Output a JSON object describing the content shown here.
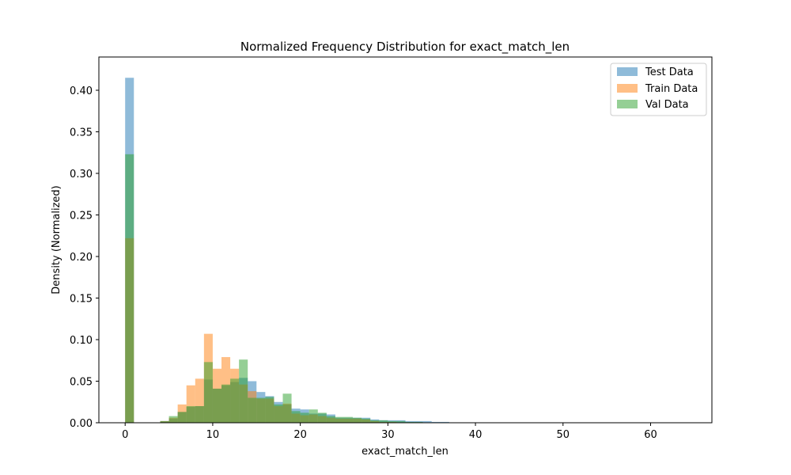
{
  "chart_data": {
    "type": "bar",
    "title": "Normalized Frequency Distribution for exact_match_len",
    "xlabel": "exact_match_len",
    "ylabel": "Density (Normalized)",
    "xlim": [
      -3,
      67
    ],
    "ylim": [
      0,
      0.44
    ],
    "x_ticks": [
      0,
      10,
      20,
      30,
      40,
      50,
      60
    ],
    "y_ticks": [
      0.0,
      0.05,
      0.1,
      0.15,
      0.2,
      0.25,
      0.3,
      0.35,
      0.4
    ],
    "x_tick_labels": [
      "0",
      "10",
      "20",
      "30",
      "40",
      "50",
      "60"
    ],
    "y_tick_labels": [
      "0.00",
      "0.05",
      "0.10",
      "0.15",
      "0.20",
      "0.25",
      "0.30",
      "0.35",
      "0.40"
    ],
    "legend_position": "top-right",
    "grid": false,
    "series": [
      {
        "name": "Test Data",
        "color": "#1f77b4",
        "bin_width": 1.0,
        "bin_starts": [
          0,
          4,
          5,
          6,
          7,
          8,
          9,
          10,
          11,
          12,
          13,
          14,
          15,
          16,
          17,
          18,
          19,
          20,
          21,
          22,
          23,
          24,
          25,
          26,
          27,
          28,
          29,
          30,
          31,
          32,
          33,
          34,
          35,
          36
        ],
        "values": [
          0.415,
          0.002,
          0.005,
          0.013,
          0.019,
          0.02,
          0.052,
          0.041,
          0.045,
          0.049,
          0.054,
          0.05,
          0.037,
          0.032,
          0.025,
          0.022,
          0.017,
          0.016,
          0.011,
          0.011,
          0.01,
          0.006,
          0.006,
          0.006,
          0.006,
          0.004,
          0.003,
          0.003,
          0.003,
          0.002,
          0.002,
          0.002,
          0.001,
          0.001
        ]
      },
      {
        "name": "Train Data",
        "color": "#ff7f0e",
        "bin_width": 1.0,
        "bin_starts": [
          0,
          4,
          5,
          6,
          7,
          8,
          9,
          10,
          11,
          12,
          13,
          14,
          15,
          16,
          17,
          18,
          19,
          20,
          21,
          22,
          23,
          24,
          25,
          26,
          27,
          28,
          29,
          30
        ],
        "values": [
          0.222,
          0.002,
          0.006,
          0.022,
          0.045,
          0.053,
          0.107,
          0.065,
          0.079,
          0.065,
          0.046,
          0.038,
          0.029,
          0.029,
          0.02,
          0.023,
          0.011,
          0.009,
          0.01,
          0.008,
          0.006,
          0.005,
          0.005,
          0.005,
          0.004,
          0.002,
          0.001,
          0.001
        ]
      },
      {
        "name": "Val Data",
        "color": "#2ca02c",
        "bin_width": 1.0,
        "bin_starts": [
          0,
          4,
          5,
          6,
          7,
          8,
          9,
          10,
          11,
          12,
          13,
          14,
          15,
          16,
          17,
          18,
          19,
          20,
          21,
          22,
          23,
          24,
          25,
          26,
          27,
          28,
          29,
          30,
          31,
          32,
          33
        ],
        "values": [
          0.323,
          0.002,
          0.008,
          0.013,
          0.02,
          0.02,
          0.073,
          0.041,
          0.046,
          0.053,
          0.076,
          0.03,
          0.03,
          0.031,
          0.022,
          0.035,
          0.014,
          0.012,
          0.016,
          0.012,
          0.008,
          0.007,
          0.007,
          0.006,
          0.005,
          0.003,
          0.003,
          0.002,
          0.002,
          0.001,
          0.001
        ]
      }
    ]
  }
}
